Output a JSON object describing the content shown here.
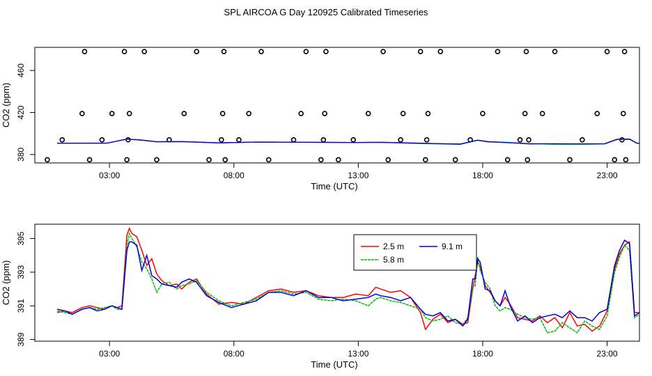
{
  "title": "SPL AIRCOA G  Day 120925  Calibrated Timeseries",
  "chart_data": [
    {
      "type": "scatter",
      "panel": "top",
      "xlabel": "Time (UTC)",
      "ylabel": "CO2 (ppm)",
      "xlim": [
        0,
        24.3
      ],
      "ylim": [
        372,
        482
      ],
      "xticks": [
        {
          "v": 3,
          "label": "03:00"
        },
        {
          "v": 8,
          "label": "08:00"
        },
        {
          "v": 13,
          "label": "13:00"
        },
        {
          "v": 18,
          "label": "18:00"
        },
        {
          "v": 23,
          "label": "23:00"
        }
      ],
      "yticks": [
        {
          "v": 380,
          "label": "380"
        },
        {
          "v": 420,
          "label": "420"
        },
        {
          "v": 460,
          "label": "460"
        }
      ],
      "baseline_series": [
        {
          "name": "2.5 m",
          "color": "#ff0000",
          "x": [
            0,
            2,
            2.8,
            3.3,
            4,
            5,
            6.5,
            8,
            10,
            12,
            13,
            14.5,
            15.5,
            16.2,
            16.9,
            17.3,
            18,
            19,
            20,
            21,
            22,
            22.5,
            23,
            23.3,
            24
          ],
          "y": [
            390.8,
            390.9,
            394.5,
            394.2,
            392.2,
            392.4,
            391.1,
            391.9,
            391.7,
            391.5,
            391.8,
            390.9,
            390.2,
            389.8,
            393.7,
            392.5,
            391.5,
            390.0,
            390.1,
            389.8,
            390.0,
            394.2,
            394.5,
            390.6,
            391.0
          ]
        },
        {
          "name": "5.8 m",
          "color": "#00bb00",
          "x": [
            0,
            2,
            2.8,
            3.3,
            4,
            5,
            6.5,
            8,
            10,
            12,
            13,
            14.5,
            15.5,
            16.2,
            16.9,
            17.3,
            18,
            19,
            20,
            21,
            22,
            22.5,
            23,
            23.3,
            24
          ],
          "y": [
            390.7,
            390.8,
            394.6,
            394.0,
            392.0,
            392.2,
            391.0,
            391.8,
            391.6,
            391.4,
            391.6,
            390.5,
            390.0,
            389.7,
            393.5,
            392.2,
            391.2,
            390.2,
            389.6,
            389.6,
            390.1,
            394.4,
            394.6,
            390.6,
            391.0
          ]
        },
        {
          "name": "9.1 m",
          "color": "#0000dd",
          "x": [
            0,
            2,
            2.8,
            3.3,
            4,
            5,
            6.5,
            8,
            10,
            12,
            13,
            14.5,
            15.5,
            16.2,
            16.9,
            17.3,
            18,
            19,
            20,
            21,
            22,
            22.5,
            23,
            23.3,
            24
          ],
          "y": [
            390.8,
            390.8,
            394.7,
            393.8,
            392.2,
            392.3,
            391.1,
            391.9,
            391.6,
            391.5,
            391.5,
            390.8,
            390.3,
            390.0,
            393.7,
            392.1,
            391.6,
            390.3,
            390.3,
            390.2,
            390.3,
            394.6,
            394.7,
            390.8,
            391.0
          ]
        }
      ],
      "marker_points": {
        "x": [
          0.5,
          1.1,
          1.9,
          2.0,
          2.2,
          2.7,
          3.1,
          3.6,
          3.7,
          3.75,
          3.8,
          4.4,
          4.9,
          5.4,
          6.0,
          6.5,
          7.0,
          7.5,
          7.55,
          7.6,
          7.65,
          8.2,
          8.6,
          9.1,
          9.4,
          10.4,
          10.7,
          10.9,
          11.5,
          11.6,
          11.65,
          11.7,
          12.2,
          12.8,
          13.4,
          14.0,
          14.2,
          14.7,
          14.8,
          15.5,
          15.7,
          15.75,
          15.8,
          16.3,
          16.9,
          17.5,
          18.0,
          18.6,
          19.0,
          19.5,
          19.7,
          19.75,
          19.8,
          19.85,
          20.4,
          20.9,
          21.5,
          22.0,
          22.6,
          23.0,
          23.3,
          23.6,
          23.65,
          23.7,
          23.75
        ]
      }
    },
    {
      "type": "line",
      "panel": "bottom",
      "xlabel": "Time (UTC)",
      "ylabel": "CO2 (ppm)",
      "xlim": [
        0,
        24.3
      ],
      "ylim": [
        388.9,
        395.85
      ],
      "xticks": [
        {
          "v": 3,
          "label": "03:00"
        },
        {
          "v": 8,
          "label": "08:00"
        },
        {
          "v": 13,
          "label": "13:00"
        },
        {
          "v": 18,
          "label": "18:00"
        },
        {
          "v": 23,
          "label": "23:00"
        }
      ],
      "yticks": [
        {
          "v": 389,
          "label": "389"
        },
        {
          "v": 391,
          "label": "391"
        },
        {
          "v": 393,
          "label": "393"
        },
        {
          "v": 395,
          "label": "395"
        }
      ],
      "legend": {
        "position": "top-center",
        "entries": [
          {
            "label": "2.5 m",
            "color": "#ff0000"
          },
          {
            "label": "5.8 m",
            "color": "#00bb00"
          },
          {
            "label": "9.1 m",
            "color": "#0000dd"
          }
        ]
      },
      "series": [
        {
          "name": "2.5 m",
          "color": "#ff0000",
          "x": [
            0.0,
            0.3,
            0.6,
            1.0,
            1.3,
            1.6,
            1.9,
            2.2,
            2.4,
            2.6,
            2.8,
            2.9,
            3.0,
            3.2,
            3.4,
            3.6,
            3.8,
            4.0,
            4.2,
            4.5,
            4.8,
            5.0,
            5.3,
            5.6,
            6.0,
            6.5,
            7.0,
            7.5,
            8.0,
            8.5,
            9.0,
            9.5,
            10.0,
            10.5,
            11.0,
            11.5,
            12.0,
            12.5,
            12.8,
            13.0,
            13.4,
            13.8,
            14.2,
            14.6,
            14.8,
            15.1,
            15.4,
            15.7,
            16.0,
            16.3,
            16.5,
            16.7,
            16.8,
            16.9,
            17.0,
            17.2,
            17.4,
            17.6,
            17.8,
            18.0,
            18.2,
            18.5,
            18.8,
            19.1,
            19.4,
            19.7,
            20.0,
            20.3,
            20.6,
            20.9,
            21.2,
            21.5,
            21.8,
            22.1,
            22.4,
            22.6,
            22.8,
            23.0,
            23.2,
            23.4,
            23.7,
            24.0
          ],
          "y": [
            390.6,
            390.7,
            390.6,
            390.9,
            391.0,
            390.9,
            390.8,
            391.0,
            390.9,
            391.0,
            395.2,
            395.6,
            395.3,
            395.1,
            394.3,
            393.4,
            393.8,
            392.9,
            392.5,
            392.2,
            392.3,
            392.0,
            392.4,
            392.6,
            391.7,
            391.1,
            391.2,
            391.1,
            391.5,
            391.9,
            392.0,
            391.8,
            391.9,
            391.6,
            391.5,
            391.5,
            391.7,
            391.6,
            392.1,
            392.0,
            391.8,
            391.9,
            391.5,
            390.6,
            389.6,
            390.2,
            390.5,
            390.0,
            390.2,
            389.9,
            390.0,
            392.0,
            392.8,
            393.6,
            393.3,
            392.2,
            391.8,
            391.3,
            391.0,
            391.5,
            391.1,
            390.3,
            390.2,
            390.1,
            390.4,
            390.0,
            390.3,
            389.7,
            390.6,
            389.8,
            389.9,
            389.5,
            389.8,
            390.7,
            393.2,
            394.1,
            394.6,
            394.8,
            390.6,
            390.6,
            390.5,
            390.8
          ]
        },
        {
          "name": "5.8 m",
          "color": "#00bb00",
          "x": [
            0.0,
            0.3,
            0.6,
            1.0,
            1.3,
            1.6,
            1.9,
            2.2,
            2.4,
            2.6,
            2.8,
            2.9,
            3.0,
            3.2,
            3.4,
            3.6,
            3.8,
            4.0,
            4.2,
            4.5,
            4.8,
            5.0,
            5.3,
            5.6,
            6.0,
            6.5,
            7.0,
            7.5,
            8.0,
            8.5,
            9.0,
            9.5,
            10.0,
            10.5,
            11.0,
            11.5,
            12.0,
            12.5,
            12.8,
            13.0,
            13.4,
            13.8,
            14.2,
            14.6,
            14.8,
            15.1,
            15.4,
            15.7,
            16.0,
            16.3,
            16.5,
            16.7,
            16.8,
            16.9,
            17.0,
            17.2,
            17.4,
            17.6,
            17.8,
            18.0,
            18.2,
            18.5,
            18.8,
            19.1,
            19.4,
            19.7,
            20.0,
            20.3,
            20.6,
            20.9,
            21.2,
            21.5,
            21.8,
            22.1,
            22.4,
            22.6,
            22.8,
            23.0,
            23.2,
            23.4,
            23.7,
            24.0
          ],
          "y": [
            390.7,
            390.6,
            390.5,
            390.8,
            390.9,
            390.8,
            390.9,
            391.0,
            390.8,
            390.8,
            394.6,
            395.3,
            395.0,
            394.5,
            393.6,
            393.2,
            392.6,
            391.8,
            392.3,
            392.4,
            392.0,
            392.2,
            392.3,
            392.5,
            391.8,
            391.3,
            391.0,
            391.2,
            391.4,
            391.8,
            391.9,
            391.7,
            391.8,
            391.4,
            391.3,
            391.4,
            391.3,
            391.0,
            391.4,
            391.5,
            391.3,
            391.2,
            391.0,
            390.8,
            390.3,
            390.1,
            390.2,
            390.4,
            390.0,
            389.9,
            390.3,
            392.1,
            392.2,
            393.9,
            393.1,
            392.4,
            392.0,
            391.0,
            390.7,
            390.9,
            390.8,
            390.5,
            390.3,
            390.2,
            390.3,
            389.4,
            389.5,
            390.0,
            389.7,
            389.4,
            390.1,
            389.8,
            389.6,
            390.4,
            393.0,
            393.9,
            394.6,
            394.3,
            390.3,
            390.5,
            390.6,
            390.7
          ]
        },
        {
          "name": "9.1 m",
          "color": "#0000dd",
          "x": [
            0.0,
            0.3,
            0.6,
            1.0,
            1.3,
            1.6,
            1.9,
            2.2,
            2.4,
            2.6,
            2.8,
            2.9,
            3.0,
            3.2,
            3.4,
            3.6,
            3.8,
            4.0,
            4.2,
            4.5,
            4.8,
            5.0,
            5.3,
            5.6,
            6.0,
            6.5,
            7.0,
            7.5,
            8.0,
            8.5,
            9.0,
            9.5,
            10.0,
            10.5,
            11.0,
            11.5,
            12.0,
            12.5,
            12.8,
            13.0,
            13.4,
            13.8,
            14.2,
            14.6,
            14.8,
            15.1,
            15.4,
            15.7,
            16.0,
            16.3,
            16.5,
            16.7,
            16.8,
            16.9,
            17.0,
            17.2,
            17.4,
            17.6,
            17.8,
            18.0,
            18.2,
            18.5,
            18.8,
            19.1,
            19.4,
            19.7,
            20.0,
            20.3,
            20.6,
            20.9,
            21.2,
            21.5,
            21.8,
            22.1,
            22.4,
            22.6,
            22.8,
            23.0,
            23.2,
            23.4,
            23.7,
            24.0
          ],
          "y": [
            390.8,
            390.7,
            390.5,
            390.8,
            390.9,
            390.7,
            390.8,
            391.0,
            390.9,
            390.8,
            394.3,
            394.8,
            394.8,
            394.6,
            393.1,
            394.0,
            392.8,
            392.6,
            392.3,
            392.2,
            392.1,
            392.4,
            392.6,
            392.4,
            391.6,
            391.2,
            390.9,
            391.1,
            391.3,
            391.8,
            391.8,
            391.6,
            391.9,
            391.5,
            391.5,
            391.3,
            391.4,
            391.5,
            391.7,
            391.6,
            391.5,
            391.3,
            391.5,
            390.8,
            390.5,
            390.4,
            390.6,
            390.1,
            390.2,
            389.8,
            390.2,
            392.6,
            392.6,
            393.8,
            393.6,
            392.0,
            391.9,
            391.3,
            391.0,
            391.9,
            391.0,
            390.1,
            390.4,
            390.0,
            390.3,
            390.4,
            390.5,
            390.3,
            390.7,
            390.3,
            390.3,
            390.1,
            390.6,
            390.8,
            393.4,
            394.3,
            394.9,
            394.7,
            390.4,
            390.6,
            390.8,
            391.0
          ]
        }
      ]
    }
  ]
}
